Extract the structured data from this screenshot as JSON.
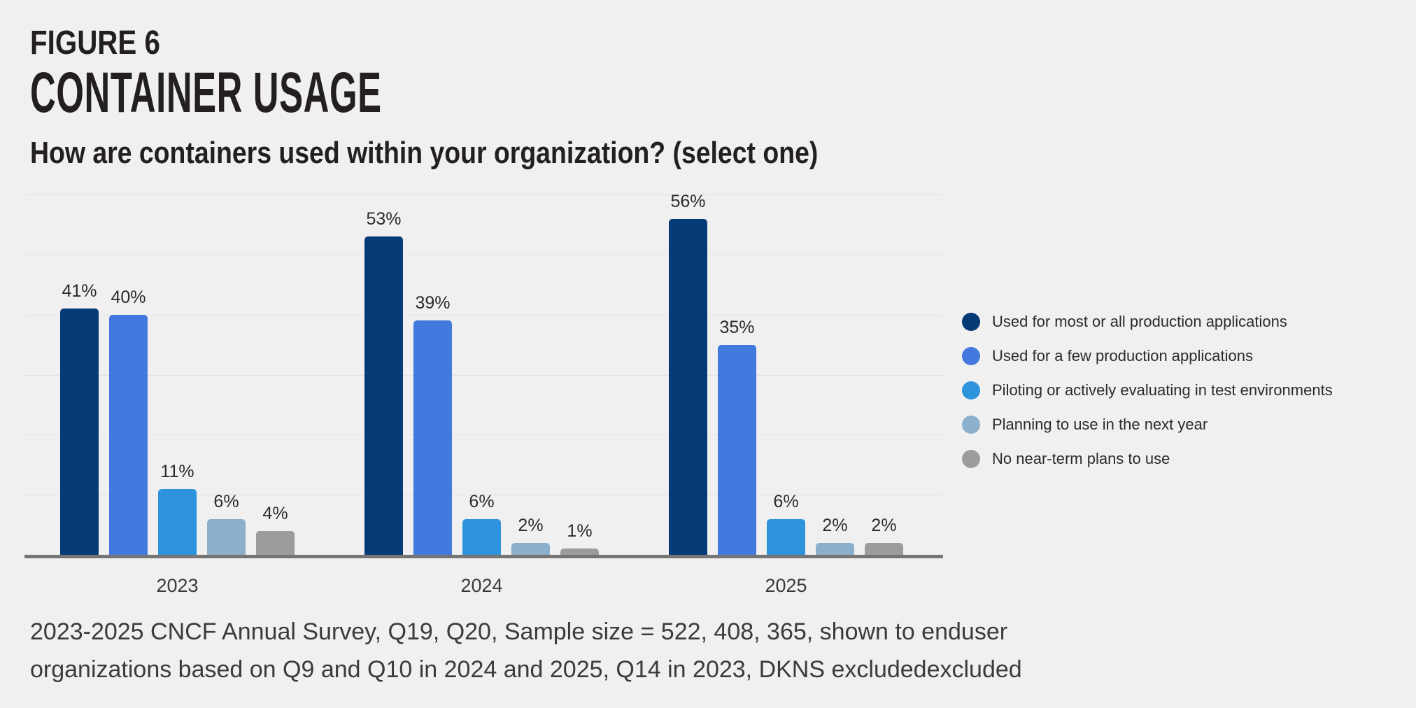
{
  "page": {
    "figure_label": "FIGURE 6",
    "title": "CONTAINER USAGE",
    "subtitle": "How are containers used within your organization? (select one)",
    "footnote_lines": [
      "2023-2025 CNCF Annual Survey, Q19, Q20, Sample size = 522, 408, 365, shown to enduser",
      "organizations based on Q9 and Q10 in 2024 and 2025, Q14 in 2023, DKNS excludedexcluded"
    ]
  },
  "colors": {
    "background": "#f0f0f0",
    "heading_text": "#231f20",
    "body_text": "#3b3b3b",
    "gridline": "#e1e1e1",
    "axis": "#757575"
  },
  "chart_data": {
    "type": "bar",
    "title": "CONTAINER USAGE",
    "question": "How are containers used within your organization? (select one)",
    "categories": [
      "2023",
      "2024",
      "2025"
    ],
    "series": [
      {
        "name": "Used for most or all production applications",
        "color": "#043a75",
        "values": [
          41,
          53,
          56
        ]
      },
      {
        "name": "Used for a few production applications",
        "color": "#4379de",
        "values": [
          40,
          39,
          35
        ]
      },
      {
        "name": "Piloting or actively evaluating in test environments",
        "color": "#2d93dd",
        "values": [
          11,
          6,
          6
        ]
      },
      {
        "name": "Planning to use in the next year",
        "color": "#8cafcc",
        "values": [
          6,
          2,
          2
        ]
      },
      {
        "name": "No near-term plans to use",
        "color": "#9c9c9c",
        "values": [
          4,
          1,
          2
        ]
      }
    ],
    "value_suffix": "%",
    "ylim": [
      0,
      60
    ],
    "gridline_step": 10,
    "grid": true,
    "legend_position": "right",
    "value_labels_shown": true
  }
}
